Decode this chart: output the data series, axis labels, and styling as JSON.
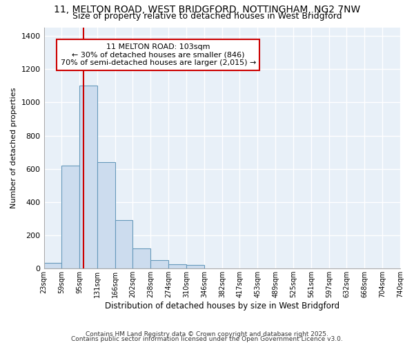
{
  "title_line1": "11, MELTON ROAD, WEST BRIDGFORD, NOTTINGHAM, NG2 7NW",
  "title_line2": "Size of property relative to detached houses in West Bridgford",
  "xlabel": "Distribution of detached houses by size in West Bridgford",
  "ylabel": "Number of detached properties",
  "bins": [
    23,
    59,
    95,
    131,
    166,
    202,
    238,
    274,
    310,
    346,
    382,
    417,
    453,
    489,
    525,
    561,
    597,
    632,
    668,
    704,
    740
  ],
  "bin_labels": [
    "23sqm",
    "59sqm",
    "95sqm",
    "131sqm",
    "166sqm",
    "202sqm",
    "238sqm",
    "274sqm",
    "310sqm",
    "346sqm",
    "382sqm",
    "417sqm",
    "453sqm",
    "489sqm",
    "525sqm",
    "561sqm",
    "597sqm",
    "632sqm",
    "668sqm",
    "704sqm",
    "740sqm"
  ],
  "bar_heights": [
    35,
    620,
    1100,
    640,
    290,
    120,
    50,
    25,
    20,
    0,
    0,
    0,
    0,
    0,
    0,
    0,
    0,
    0,
    0,
    0
  ],
  "bar_color": "#ccdcee",
  "bar_edge_color": "#6699bb",
  "red_line_x": 103,
  "annotation_line1": "11 MELTON ROAD: 103sqm",
  "annotation_line2": "← 30% of detached houses are smaller (846)",
  "annotation_line3": "70% of semi-detached houses are larger (2,015) →",
  "annotation_box_color": "#ffffff",
  "annotation_edge_color": "#cc0000",
  "red_line_color": "#cc0000",
  "ylim": [
    0,
    1450
  ],
  "yticks": [
    0,
    200,
    400,
    600,
    800,
    1000,
    1200,
    1400
  ],
  "plot_bg_color": "#e8f0f8",
  "fig_bg_color": "#ffffff",
  "grid_color": "#ffffff",
  "footer_line1": "Contains HM Land Registry data © Crown copyright and database right 2025.",
  "footer_line2": "Contains public sector information licensed under the Open Government Licence v3.0."
}
